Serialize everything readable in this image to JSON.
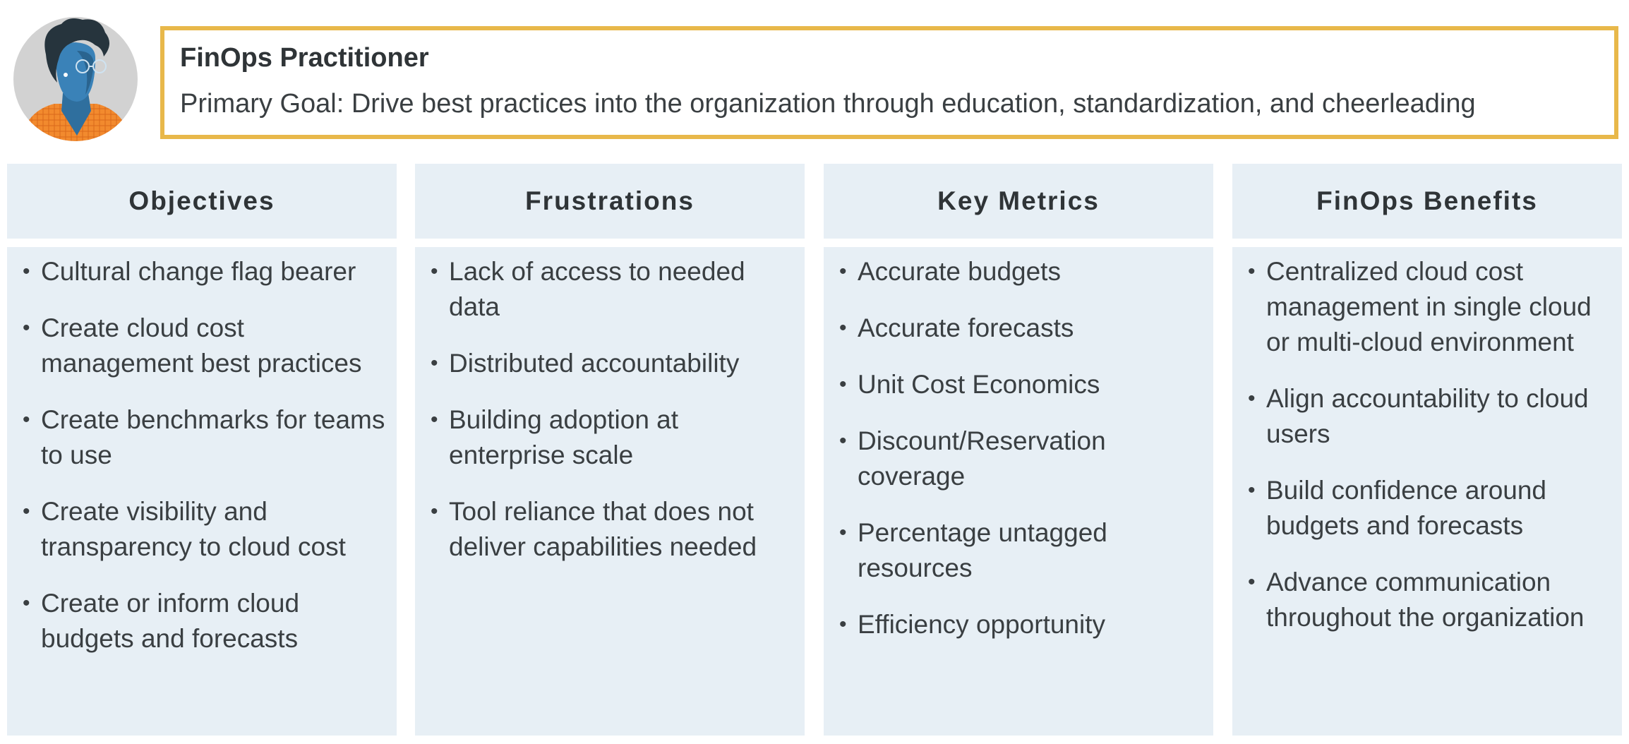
{
  "persona": {
    "title": "FinOps Practitioner",
    "goal": "Primary Goal: Drive best practices into the organization through education, standardization, and cheerleading",
    "avatar_icon": "person-avatar-icon",
    "border_color": "#e8b84a"
  },
  "columns": [
    {
      "header": "Objectives",
      "items": [
        "Cultural change flag bearer",
        "Create cloud cost management best practices",
        "Create benchmarks for teams to use",
        "Create visibility and transparency to cloud cost",
        "Create or inform cloud budgets and forecasts"
      ]
    },
    {
      "header": "Frustrations",
      "items": [
        "Lack of access to needed data",
        "Distributed accountability",
        "Building adoption at enterprise scale",
        "Tool reliance that does not deliver capabilities needed"
      ]
    },
    {
      "header": "Key Metrics",
      "items": [
        "Accurate budgets",
        "Accurate forecasts",
        "Unit Cost Economics",
        "Discount/Reservation coverage",
        "Percentage untagged resources",
        "Efficiency opportunity"
      ]
    },
    {
      "header": "FinOps Benefits",
      "items": [
        "Centralized cloud cost management in single cloud or multi-cloud environment",
        "Align accountability to cloud users",
        "Build confidence around budgets and forecasts",
        "Advance communication throughout the organization"
      ]
    }
  ],
  "colors": {
    "panel_background": "#e7eff5",
    "text": "#2f3437"
  }
}
